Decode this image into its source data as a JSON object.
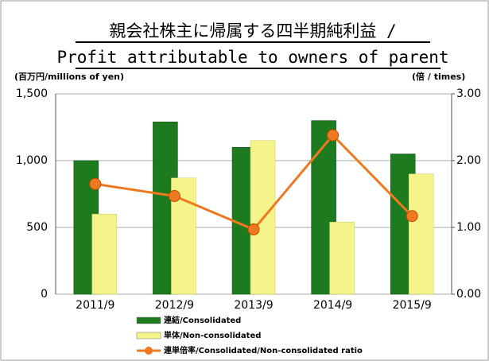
{
  "chart_data": {
    "type": "bar_line",
    "title": [
      "親会社株主に帰属する四半期純利益 /",
      "Profit attributable to owners of parent"
    ],
    "y_label": "(百万円/millions of yen)",
    "y2_label": "(倍 / times)",
    "categories": [
      "2011/9",
      "2012/9",
      "2013/9",
      "2014/9",
      "2015/9"
    ],
    "series": [
      {
        "name": "連結/Consolidated",
        "type": "bar",
        "color": "#1e7a1e",
        "values": [
          1000,
          1290,
          1100,
          1300,
          1050
        ]
      },
      {
        "name": "単体/Non-consolidated",
        "type": "bar",
        "color": "#f4f48a",
        "values": [
          600,
          870,
          1150,
          540,
          900
        ]
      },
      {
        "name": "連単倍率/Consolidated/Non-consolidated ratio",
        "type": "line",
        "axis": "y2",
        "color": "#f07820",
        "values": [
          1.65,
          1.47,
          0.97,
          2.38,
          1.17
        ]
      }
    ],
    "ylim": [
      0,
      1500
    ],
    "yticks": [
      0,
      500,
      {
        "value": 1000,
        "label": "1,000"
      },
      {
        "value": 1500,
        "label": "1,500"
      }
    ],
    "y2lim": [
      0,
      3
    ],
    "y2ticks": [
      {
        "value": 0,
        "label": "0.00"
      },
      {
        "value": 1,
        "label": "1.00"
      },
      {
        "value": 2,
        "label": "2.00"
      },
      {
        "value": 3,
        "label": "3.00"
      }
    ],
    "grid": true
  }
}
